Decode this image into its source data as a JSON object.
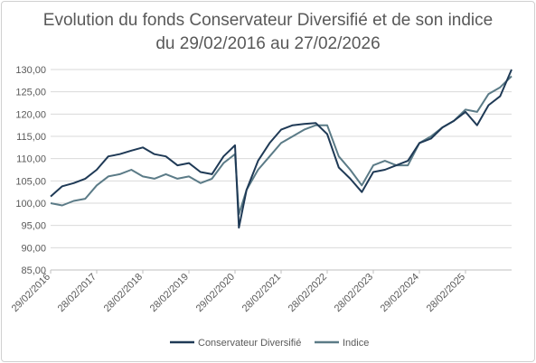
{
  "chart_data": {
    "type": "line",
    "title": "Evolution du fonds Conservateur Diversifié et de son indice",
    "subtitle": "du 29/02/2016 au 27/02/2026",
    "ylim": [
      85,
      130
    ],
    "yticks": [
      "85,00",
      "90,00",
      "95,00",
      "100,00",
      "105,00",
      "110,00",
      "115,00",
      "120,00",
      "125,00",
      "130,00"
    ],
    "xticks": [
      "29/02/2016",
      "28/02/2017",
      "28/02/2018",
      "28/02/2019",
      "29/02/2020",
      "28/02/2021",
      "28/02/2022",
      "28/02/2023",
      "29/02/2024",
      "28/02/2025"
    ],
    "grid": true,
    "legend_position": "bottom",
    "x": [
      "2016-02",
      "2016-05",
      "2016-08",
      "2016-11",
      "2017-02",
      "2017-05",
      "2017-08",
      "2017-11",
      "2018-02",
      "2018-05",
      "2018-08",
      "2018-11",
      "2019-02",
      "2019-05",
      "2019-08",
      "2019-11",
      "2020-02",
      "2020-03",
      "2020-05",
      "2020-08",
      "2020-11",
      "2021-02",
      "2021-05",
      "2021-08",
      "2021-11",
      "2022-02",
      "2022-05",
      "2022-08",
      "2022-11",
      "2023-02",
      "2023-05",
      "2023-08",
      "2023-11",
      "2024-02",
      "2024-05",
      "2024-08",
      "2024-11",
      "2025-02",
      "2025-05",
      "2025-08",
      "2025-11",
      "2026-02"
    ],
    "series": [
      {
        "name": "Conservateur Diversifié",
        "color": "#1f3a56",
        "values": [
          101.5,
          103.8,
          104.5,
          105.5,
          107.5,
          110.5,
          111.0,
          111.8,
          112.5,
          111.0,
          110.5,
          108.5,
          109.0,
          107.0,
          106.5,
          110.5,
          113.0,
          94.5,
          103.0,
          109.5,
          113.5,
          116.5,
          117.5,
          117.8,
          118.0,
          115.5,
          108.0,
          105.5,
          102.5,
          107.0,
          107.5,
          108.5,
          109.5,
          113.5,
          114.5,
          117.0,
          118.5,
          120.5,
          117.5,
          122.0,
          124.0,
          130.0
        ]
      },
      {
        "name": "Indice",
        "color": "#5b7b87",
        "values": [
          100.0,
          99.5,
          100.5,
          101.0,
          104.0,
          106.0,
          106.5,
          107.5,
          106.0,
          105.5,
          106.5,
          105.5,
          106.0,
          104.5,
          105.5,
          109.0,
          111.0,
          97.5,
          103.0,
          107.5,
          110.5,
          113.5,
          115.0,
          116.5,
          117.5,
          117.5,
          110.5,
          107.5,
          104.0,
          108.5,
          109.5,
          108.5,
          108.5,
          113.5,
          115.0,
          117.0,
          118.5,
          121.0,
          120.5,
          124.5,
          126.0,
          128.5
        ]
      }
    ]
  }
}
